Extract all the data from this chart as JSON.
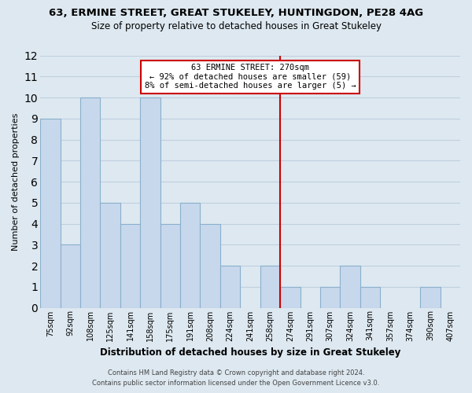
{
  "title": "63, ERMINE STREET, GREAT STUKELEY, HUNTINGDON, PE28 4AG",
  "subtitle": "Size of property relative to detached houses in Great Stukeley",
  "xlabel": "Distribution of detached houses by size in Great Stukeley",
  "ylabel": "Number of detached properties",
  "categories": [
    "75sqm",
    "92sqm",
    "108sqm",
    "125sqm",
    "141sqm",
    "158sqm",
    "175sqm",
    "191sqm",
    "208sqm",
    "224sqm",
    "241sqm",
    "258sqm",
    "274sqm",
    "291sqm",
    "307sqm",
    "324sqm",
    "341sqm",
    "357sqm",
    "374sqm",
    "390sqm",
    "407sqm"
  ],
  "values": [
    9,
    3,
    10,
    5,
    4,
    10,
    4,
    5,
    4,
    2,
    0,
    2,
    1,
    0,
    1,
    2,
    1,
    0,
    0,
    1,
    0
  ],
  "bar_color": "#c8d8ec",
  "bar_edge_color": "#8ab0cc",
  "vline_color": "#cc0000",
  "annotation_title": "63 ERMINE STREET: 270sqm",
  "annotation_line1": "← 92% of detached houses are smaller (59)",
  "annotation_line2": "8% of semi-detached houses are larger (5) →",
  "annotation_box_color": "#ffffff",
  "annotation_box_edge": "#cc0000",
  "ylim": [
    0,
    12
  ],
  "yticks": [
    0,
    1,
    2,
    3,
    4,
    5,
    6,
    7,
    8,
    9,
    10,
    11,
    12
  ],
  "footer1": "Contains HM Land Registry data © Crown copyright and database right 2024.",
  "footer2": "Contains public sector information licensed under the Open Government Licence v3.0.",
  "background_color": "#dde8f0",
  "grid_color": "#c0cfe0",
  "title_fontsize": 9.5,
  "subtitle_fontsize": 8.5
}
